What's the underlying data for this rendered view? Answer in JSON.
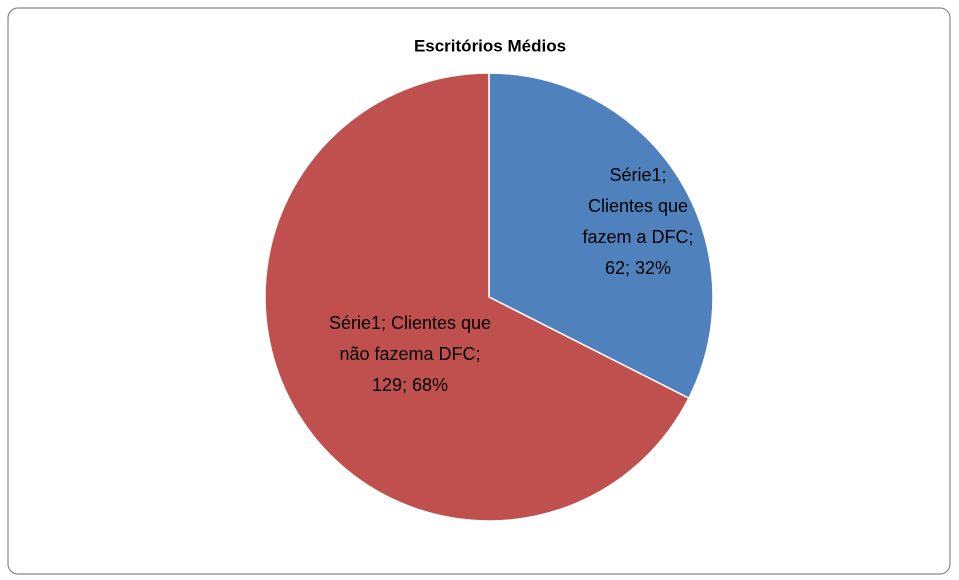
{
  "chart_data": {
    "type": "pie",
    "title": "Escritórios Médios",
    "series_name": "Série1",
    "categories": [
      "Clientes que fazem a DFC",
      "Clientes que não fazema DFC"
    ],
    "values": [
      62,
      129
    ],
    "value_labels": [
      "Série1; Clientes que fazem a DFC; 62; 32%",
      "Série1; Clientes que não fazema DFC; 129; 68%"
    ],
    "colors": [
      "#4f81bd",
      "#c0504d"
    ]
  }
}
